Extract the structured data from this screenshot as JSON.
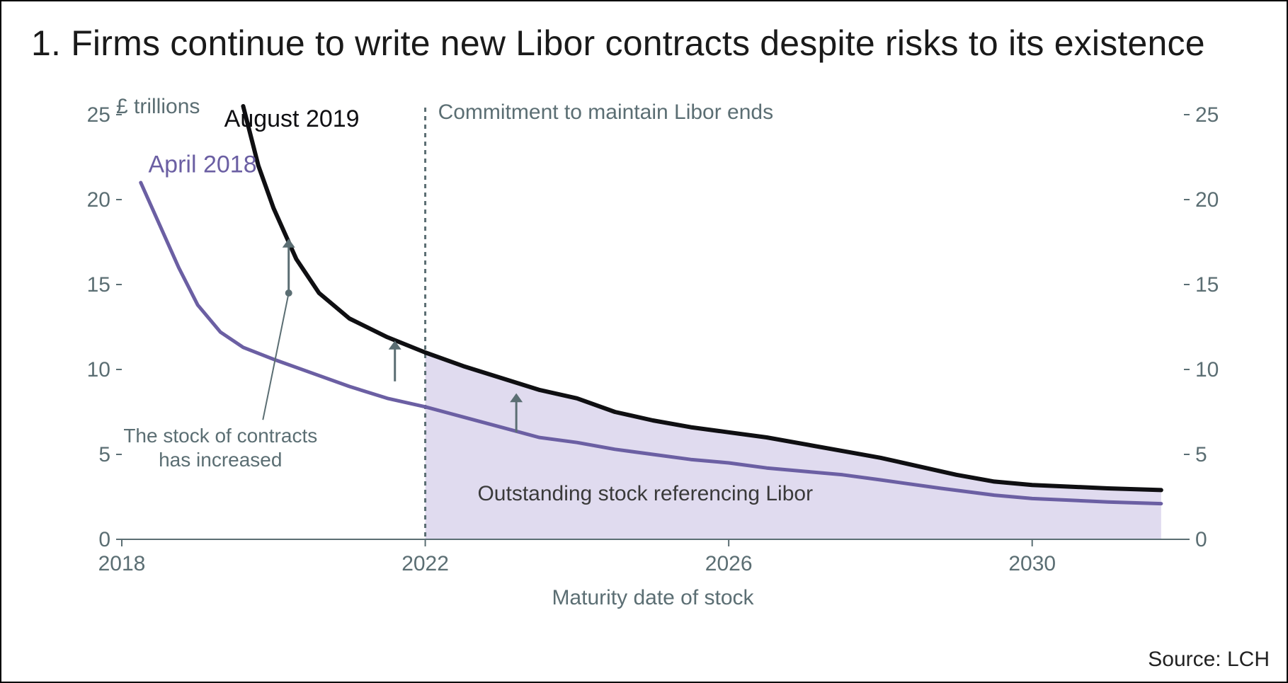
{
  "title": "1. Firms continue to write new Libor contracts despite risks to its existence",
  "source": "Source: LCH",
  "chart": {
    "type": "line-area",
    "background_color": "#ffffff",
    "axis_color": "#5b6e73",
    "tick_label_color": "#5b6e73",
    "tick_fontsize": 30,
    "yaxis_label": "£ trillions",
    "yaxis_label_color": "#5b6e73",
    "yaxis_label_fontsize": 30,
    "xaxis_label": "Maturity date of stock",
    "xaxis_label_color": "#5b6e73",
    "xaxis_label_fontsize": 30,
    "xlim": [
      2018,
      2032
    ],
    "ylim": [
      0,
      25
    ],
    "ytick_step": 5,
    "xtick_step": 4,
    "xticks": [
      2018,
      2022,
      2026,
      2030
    ],
    "yticks": [
      0,
      5,
      10,
      15,
      20,
      25
    ],
    "vertical_line_x": 2022,
    "vertical_line_color": "#5b6e73",
    "vertical_line_dash": "6,6",
    "vertical_line_width": 3,
    "vertical_line_label": "Commitment to maintain Libor ends",
    "vertical_line_label_color": "#5b6e73",
    "shaded_region": {
      "from_x": 2022,
      "fill": "#d6cfe9",
      "opacity": 0.75,
      "label": "Outstanding stock referencing Libor",
      "label_color": "#3a3a3a",
      "label_fontsize": 30
    },
    "series": [
      {
        "name": "April 2018",
        "label": "April 2018",
        "label_color": "#6b5fa3",
        "label_fontsize": 34,
        "color": "#6b5fa3",
        "line_width": 5,
        "points": [
          [
            2018.25,
            21.0
          ],
          [
            2018.5,
            18.5
          ],
          [
            2018.75,
            16.0
          ],
          [
            2019.0,
            13.8
          ],
          [
            2019.3,
            12.2
          ],
          [
            2019.6,
            11.3
          ],
          [
            2020.0,
            10.6
          ],
          [
            2020.5,
            9.8
          ],
          [
            2021.0,
            9.0
          ],
          [
            2021.5,
            8.3
          ],
          [
            2022.0,
            7.8
          ],
          [
            2022.5,
            7.2
          ],
          [
            2023.0,
            6.6
          ],
          [
            2023.5,
            6.0
          ],
          [
            2024.0,
            5.7
          ],
          [
            2024.5,
            5.3
          ],
          [
            2025.0,
            5.0
          ],
          [
            2025.5,
            4.7
          ],
          [
            2026.0,
            4.5
          ],
          [
            2026.5,
            4.2
          ],
          [
            2027.0,
            4.0
          ],
          [
            2027.5,
            3.8
          ],
          [
            2028.0,
            3.5
          ],
          [
            2028.8,
            3.0
          ],
          [
            2029.5,
            2.6
          ],
          [
            2030.0,
            2.4
          ],
          [
            2030.5,
            2.3
          ],
          [
            2031.0,
            2.2
          ],
          [
            2031.7,
            2.1
          ]
        ]
      },
      {
        "name": "August 2019",
        "label": "August 2019",
        "label_color": "#0f0f12",
        "label_fontsize": 34,
        "color": "#0f0f12",
        "line_width": 6,
        "points": [
          [
            2019.6,
            25.5
          ],
          [
            2019.8,
            22.0
          ],
          [
            2020.0,
            19.5
          ],
          [
            2020.3,
            16.5
          ],
          [
            2020.6,
            14.5
          ],
          [
            2021.0,
            13.0
          ],
          [
            2021.5,
            11.9
          ],
          [
            2022.0,
            11.0
          ],
          [
            2022.5,
            10.2
          ],
          [
            2023.0,
            9.5
          ],
          [
            2023.5,
            8.8
          ],
          [
            2024.0,
            8.3
          ],
          [
            2024.5,
            7.5
          ],
          [
            2025.0,
            7.0
          ],
          [
            2025.5,
            6.6
          ],
          [
            2026.0,
            6.3
          ],
          [
            2026.5,
            6.0
          ],
          [
            2027.0,
            5.6
          ],
          [
            2027.5,
            5.2
          ],
          [
            2028.0,
            4.8
          ],
          [
            2028.5,
            4.3
          ],
          [
            2029.0,
            3.8
          ],
          [
            2029.5,
            3.4
          ],
          [
            2030.0,
            3.2
          ],
          [
            2030.5,
            3.1
          ],
          [
            2031.0,
            3.0
          ],
          [
            2031.7,
            2.9
          ]
        ]
      }
    ],
    "arrows": {
      "color": "#5b6e73",
      "width": 3,
      "arrowhead_size": 9,
      "items": [
        {
          "x": 2020.2,
          "y_from": 14.5,
          "y_to": 17.7
        },
        {
          "x": 2021.6,
          "y_from": 9.3,
          "y_to": 11.7
        },
        {
          "x": 2023.2,
          "y_from": 6.3,
          "y_to": 8.6
        }
      ]
    },
    "callout": {
      "text": "The stock of contracts\nhas increased",
      "text_color": "#5b6e73",
      "fontsize": 28,
      "anchor_x": 2019.3,
      "anchor_y": 5.7,
      "pointer_to_x": 2020.2,
      "pointer_to_y": 14.5,
      "pointer_color": "#5b6e73",
      "pointer_width": 2
    }
  }
}
